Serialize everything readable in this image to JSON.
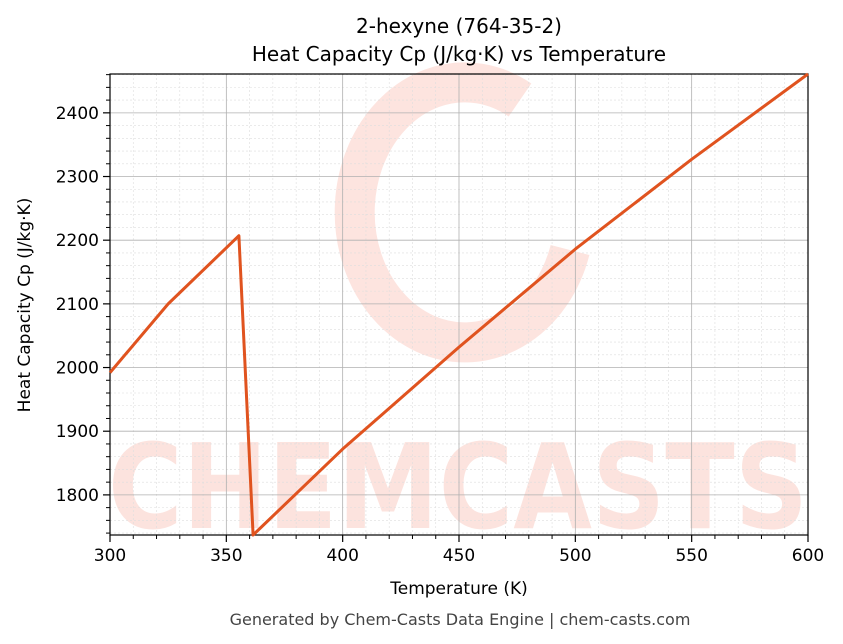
{
  "chart_data": {
    "type": "line",
    "title": "2-hexyne (764-35-2)",
    "subtitle": "Heat Capacity Cp (J/kg·K) vs Temperature",
    "xlabel": "Temperature (K)",
    "ylabel": "Heat Capacity Cp (J/kg·K)",
    "xlim": [
      300,
      600
    ],
    "ylim": [
      1737,
      2461
    ],
    "xticks": [
      300,
      350,
      400,
      450,
      500,
      550,
      600
    ],
    "yticks": [
      1800,
      1900,
      2000,
      2100,
      2200,
      2300,
      2400
    ],
    "grid": true,
    "series": [
      {
        "color": "#e0531f",
        "x": [
          300,
          325,
          355.4,
          361.5,
          400,
          450,
          500,
          550,
          600
        ],
        "y": [
          1992,
          2100,
          2207,
          1737,
          1872,
          2032,
          2186,
          2327,
          2461
        ]
      }
    ],
    "watermark": "CHEMCASTS",
    "footer": "Generated by Chem-Casts Data Engine | chem-casts.com"
  }
}
